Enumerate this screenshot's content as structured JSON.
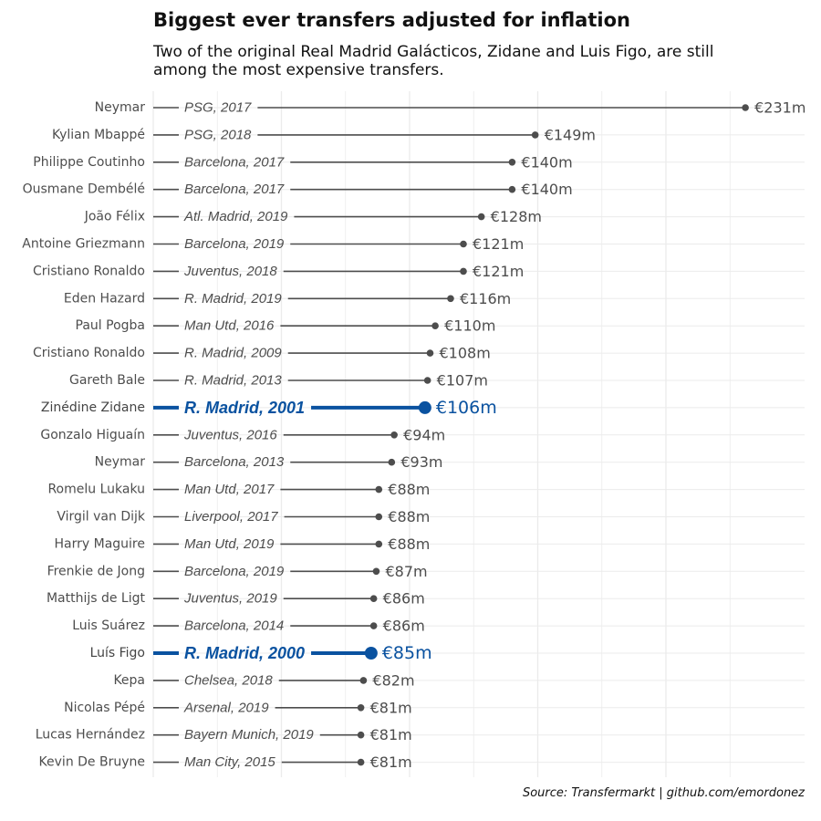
{
  "chart_data": {
    "type": "lollipop",
    "title": "Biggest ever transfers adjusted for inflation",
    "subtitle": "Two of the original Real Madrid Galácticos, Zidane and Luis Figo, are still among the most expensive transfers.",
    "caption": "Source: Transfermarkt | github.com/emordonez",
    "xlim": [
      0,
      235
    ],
    "grid": true,
    "colors": {
      "default": "#4d4d4d",
      "highlight": "#0a52a0",
      "grid": "#ebebeb"
    },
    "rows": [
      {
        "player": "Neymar",
        "club_year": "PSG, 2017",
        "value": 231,
        "label": "€231m",
        "highlight": false
      },
      {
        "player": "Kylian Mbappé",
        "club_year": "PSG, 2018",
        "value": 149,
        "label": "€149m",
        "highlight": false
      },
      {
        "player": "Philippe Coutinho",
        "club_year": "Barcelona, 2017",
        "value": 140,
        "label": "€140m",
        "highlight": false
      },
      {
        "player": "Ousmane Dembélé",
        "club_year": "Barcelona, 2017",
        "value": 140,
        "label": "€140m",
        "highlight": false
      },
      {
        "player": "João Félix",
        "club_year": "Atl. Madrid, 2019",
        "value": 128,
        "label": "€128m",
        "highlight": false
      },
      {
        "player": "Antoine Griezmann",
        "club_year": "Barcelona, 2019",
        "value": 121,
        "label": "€121m",
        "highlight": false
      },
      {
        "player": "Cristiano Ronaldo",
        "club_year": "Juventus, 2018",
        "value": 121,
        "label": "€121m",
        "highlight": false
      },
      {
        "player": "Eden Hazard",
        "club_year": "R. Madrid, 2019",
        "value": 116,
        "label": "€116m",
        "highlight": false
      },
      {
        "player": "Paul Pogba",
        "club_year": "Man Utd, 2016",
        "value": 110,
        "label": "€110m",
        "highlight": false
      },
      {
        "player": "Cristiano Ronaldo",
        "club_year": "R. Madrid, 2009",
        "value": 108,
        "label": "€108m",
        "highlight": false
      },
      {
        "player": "Gareth Bale",
        "club_year": "R. Madrid, 2013",
        "value": 107,
        "label": "€107m",
        "highlight": false
      },
      {
        "player": "Zinédine Zidane",
        "club_year": "R. Madrid, 2001",
        "value": 106,
        "label": "€106m",
        "highlight": true
      },
      {
        "player": "Gonzalo Higuaín",
        "club_year": "Juventus, 2016",
        "value": 94,
        "label": "€94m",
        "highlight": false
      },
      {
        "player": "Neymar",
        "club_year": "Barcelona, 2013",
        "value": 93,
        "label": "€93m",
        "highlight": false
      },
      {
        "player": "Romelu Lukaku",
        "club_year": "Man Utd, 2017",
        "value": 88,
        "label": "€88m",
        "highlight": false
      },
      {
        "player": "Virgil van Dijk",
        "club_year": "Liverpool, 2017",
        "value": 88,
        "label": "€88m",
        "highlight": false
      },
      {
        "player": "Harry Maguire",
        "club_year": "Man Utd, 2019",
        "value": 88,
        "label": "€88m",
        "highlight": false
      },
      {
        "player": "Frenkie de Jong",
        "club_year": "Barcelona, 2019",
        "value": 87,
        "label": "€87m",
        "highlight": false
      },
      {
        "player": "Matthijs de Ligt",
        "club_year": "Juventus, 2019",
        "value": 86,
        "label": "€86m",
        "highlight": false
      },
      {
        "player": "Luis Suárez",
        "club_year": "Barcelona, 2014",
        "value": 86,
        "label": "€86m",
        "highlight": false
      },
      {
        "player": "Luís Figo",
        "club_year": "R. Madrid, 2000",
        "value": 85,
        "label": "€85m",
        "highlight": true
      },
      {
        "player": "Kepa",
        "club_year": "Chelsea, 2018",
        "value": 82,
        "label": "€82m",
        "highlight": false
      },
      {
        "player": "Nicolas Pépé",
        "club_year": "Arsenal, 2019",
        "value": 81,
        "label": "€81m",
        "highlight": false
      },
      {
        "player": "Lucas Hernández",
        "club_year": "Bayern Munich, 2019",
        "value": 81,
        "label": "€81m",
        "highlight": false
      },
      {
        "player": "Kevin De Bruyne",
        "club_year": "Man City, 2015",
        "value": 81,
        "label": "€81m",
        "highlight": false
      }
    ]
  }
}
